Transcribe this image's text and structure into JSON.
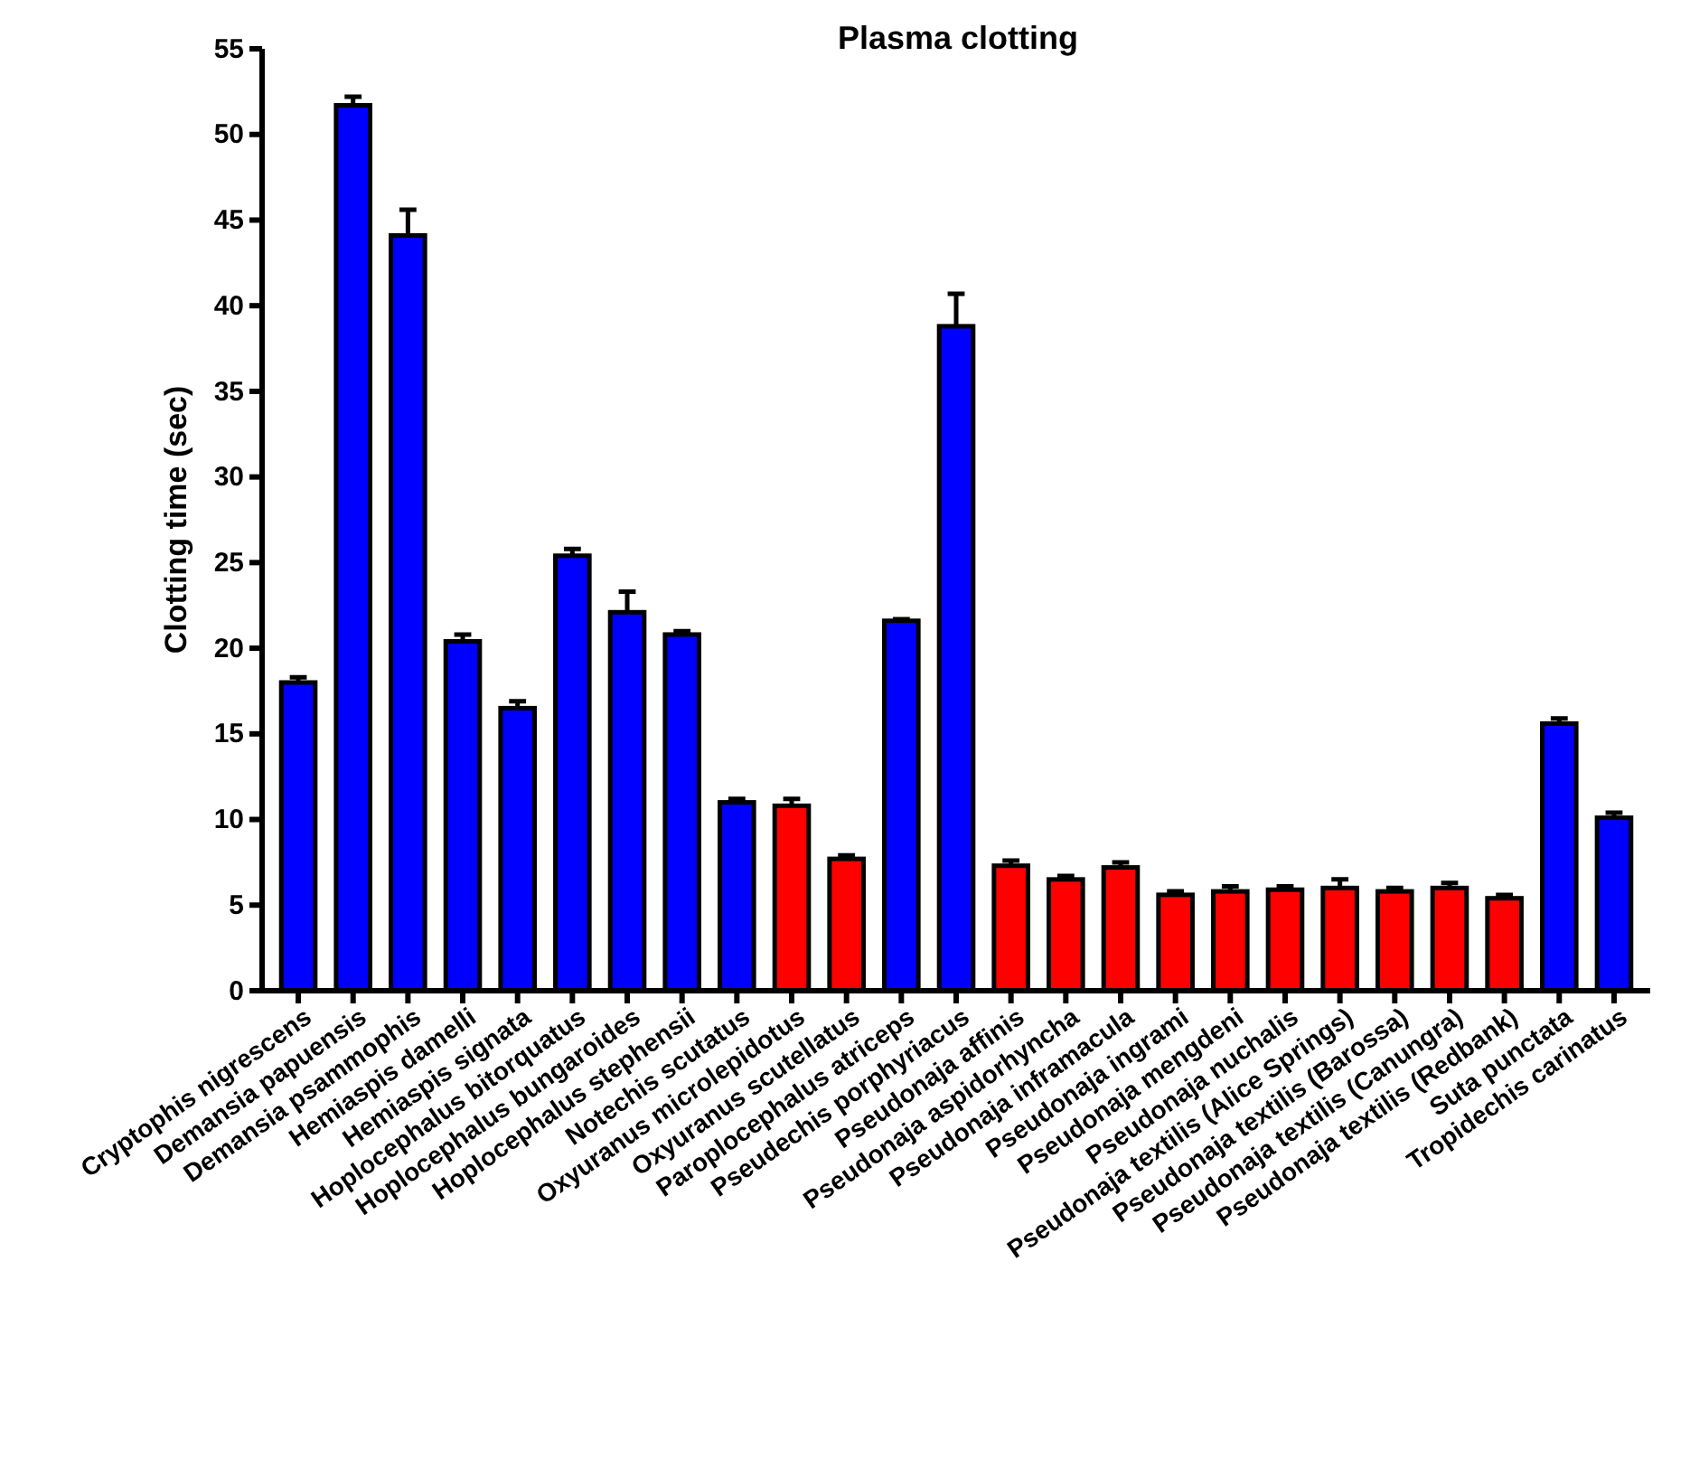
{
  "chart_data": {
    "type": "bar",
    "title": "Plasma clotting",
    "ylabel": "Clotting time (sec)",
    "categories": [
      "Cryptophis nigrescens",
      "Demansia papuensis",
      "Demansia psammophis",
      "Hemiaspis damelli",
      "Hemiaspis signata",
      "Hoplocephalus bitorquatus",
      "Hoplocephalus bungaroides",
      "Hoplocephalus stephensii",
      "Notechis scutatus",
      "Oxyuranus microlepidotus",
      "Oxyuranus scutellatus",
      "Paroplocephalus atriceps",
      "Pseudechis porphyriacus",
      "Pseudonaja affinis",
      "Pseudonaja aspidorhyncha",
      "Pseudonaja inframacula",
      "Pseudonaja ingrami",
      "Pseudonaja mengdeni",
      "Pseudonaja nuchalis",
      "Pseudonaja textilis (Alice Springs)",
      "Pseudonaja textilis (Barossa)",
      "Pseudonaja textilis (Canungra)",
      "Pseudonaja textilis (Redbank)",
      "Suta punctata",
      "Tropidechis carinatus"
    ],
    "values": [
      18.0,
      51.7,
      44.1,
      20.4,
      16.5,
      25.4,
      22.1,
      20.8,
      11.0,
      10.8,
      7.7,
      21.6,
      38.8,
      7.3,
      6.5,
      7.2,
      5.6,
      5.8,
      5.9,
      6.0,
      5.8,
      6.0,
      5.4,
      15.6,
      10.1
    ],
    "errors": [
      [
        18.0,
        18.3
      ],
      [
        51.7,
        52.2
      ],
      [
        44.1,
        45.6
      ],
      [
        20.4,
        20.8
      ],
      [
        16.5,
        16.9
      ],
      [
        25.4,
        25.8
      ],
      [
        22.1,
        23.3
      ],
      [
        20.8,
        21.0
      ],
      [
        11.0,
        11.2
      ],
      [
        10.8,
        11.2
      ],
      [
        7.7,
        7.9
      ],
      [
        21.6,
        21.7
      ],
      [
        38.8,
        40.7
      ],
      [
        7.3,
        7.6
      ],
      [
        6.5,
        6.7
      ],
      [
        7.2,
        7.5
      ],
      [
        5.6,
        5.8
      ],
      [
        5.8,
        6.1
      ],
      [
        5.9,
        6.1
      ],
      [
        6.0,
        6.5
      ],
      [
        5.8,
        6.0
      ],
      [
        6.0,
        6.3
      ],
      [
        5.4,
        5.6
      ],
      [
        15.6,
        15.9
      ],
      [
        10.1,
        10.4
      ]
    ],
    "colors": [
      "#0000ff",
      "#0000ff",
      "#0000ff",
      "#0000ff",
      "#0000ff",
      "#0000ff",
      "#0000ff",
      "#0000ff",
      "#0000ff",
      "#ff0000",
      "#ff0000",
      "#0000ff",
      "#0000ff",
      "#ff0000",
      "#ff0000",
      "#ff0000",
      "#ff0000",
      "#ff0000",
      "#ff0000",
      "#ff0000",
      "#ff0000",
      "#ff0000",
      "#ff0000",
      "#0000ff",
      "#0000ff"
    ],
    "ylim": [
      0,
      55
    ],
    "yticks": [
      0,
      5,
      10,
      15,
      20,
      25,
      30,
      35,
      40,
      45,
      50,
      55
    ],
    "grid": false
  }
}
